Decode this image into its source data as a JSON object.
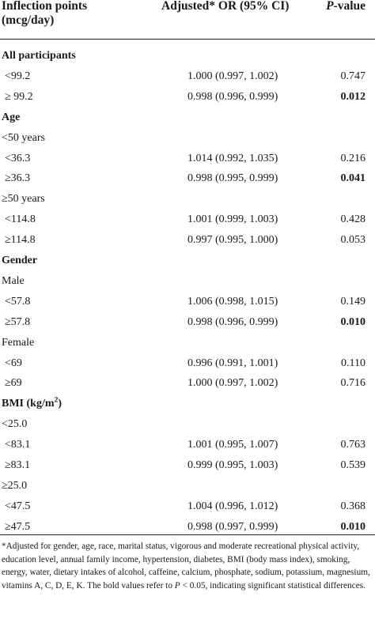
{
  "header": {
    "col1_line1": "Inflection points",
    "col1_line2": "(mcg/day)",
    "col2": "Adjusted* OR (95% CI)",
    "col3_italic": "P",
    "col3_rest": "-value"
  },
  "rows": [
    {
      "type": "section",
      "label": "All participants",
      "or": "",
      "p": "",
      "p_bold": false
    },
    {
      "type": "data",
      "label": "<99.2",
      "or": "1.000 (0.997, 1.002)",
      "p": "0.747",
      "p_bold": false
    },
    {
      "type": "data",
      "label": "≥ 99.2",
      "or": "0.998 (0.996, 0.999)",
      "p": "0.012",
      "p_bold": true
    },
    {
      "type": "section",
      "label": "Age",
      "or": "",
      "p": "",
      "p_bold": false
    },
    {
      "type": "sub",
      "label": "<50 years",
      "or": "",
      "p": "",
      "p_bold": false
    },
    {
      "type": "data",
      "label": "<36.3",
      "or": "1.014 (0.992, 1.035)",
      "p": "0.216",
      "p_bold": false
    },
    {
      "type": "data",
      "label": "≥36.3",
      "or": "0.998 (0.995, 0.999)",
      "p": "0.041",
      "p_bold": true
    },
    {
      "type": "sub",
      "label": "≥50 years",
      "or": "",
      "p": "",
      "p_bold": false
    },
    {
      "type": "data",
      "label": "<114.8",
      "or": "1.001 (0.999, 1.003)",
      "p": "0.428",
      "p_bold": false
    },
    {
      "type": "data",
      "label": "≥114.8",
      "or": "0.997 (0.995, 1.000)",
      "p": "0.053",
      "p_bold": false
    },
    {
      "type": "section",
      "label": "Gender",
      "or": "",
      "p": "",
      "p_bold": false
    },
    {
      "type": "sub",
      "label": "Male",
      "or": "",
      "p": "",
      "p_bold": false
    },
    {
      "type": "data",
      "label": "<57.8",
      "or": "1.006 (0.998, 1.015)",
      "p": "0.149",
      "p_bold": false
    },
    {
      "type": "data",
      "label": "≥57.8",
      "or": "0.998 (0.996, 0.999)",
      "p": "0.010",
      "p_bold": true
    },
    {
      "type": "sub",
      "label": "Female",
      "or": "",
      "p": "",
      "p_bold": false
    },
    {
      "type": "data",
      "label": "<69",
      "or": "0.996 (0.991, 1.001)",
      "p": "0.110",
      "p_bold": false
    },
    {
      "type": "data",
      "label": "≥69",
      "or": "1.000 (0.997, 1.002)",
      "p": "0.716",
      "p_bold": false
    },
    {
      "type": "section",
      "label": "BMI (kg/m",
      "sup": "2",
      "label_after": ")",
      "or": "",
      "p": "",
      "p_bold": false
    },
    {
      "type": "sub",
      "label": "<25.0",
      "or": "",
      "p": "",
      "p_bold": false
    },
    {
      "type": "data",
      "label": "<83.1",
      "or": "1.001 (0.995, 1.007)",
      "p": "0.763",
      "p_bold": false
    },
    {
      "type": "data",
      "label": "≥83.1",
      "or": "0.999 (0.995, 1.003)",
      "p": "0.539",
      "p_bold": false
    },
    {
      "type": "sub",
      "label": "≥25.0",
      "or": "",
      "p": "",
      "p_bold": false
    },
    {
      "type": "data",
      "label": "<47.5",
      "or": "1.004 (0.996, 1.012)",
      "p": "0.368",
      "p_bold": false
    },
    {
      "type": "data",
      "label": "≥47.5",
      "or": "0.998 (0.997, 0.999)",
      "p": "0.010",
      "p_bold": true
    }
  ],
  "footnote": {
    "text": "*Adjusted for gender, age, race, marital status, vigorous and moderate recreational physical activity, education level, annual family income, hypertension, diabetes, BMI (body mass index), smoking, energy, water, dietary intakes of alcohol, caffeine, calcium, phosphate, sodium, potassium, magnesium, vitamins A, C, D, E, K. The bold values refer to ",
    "p_italic": "P",
    "tail": " < 0.05, indicating significant statistical differences."
  }
}
